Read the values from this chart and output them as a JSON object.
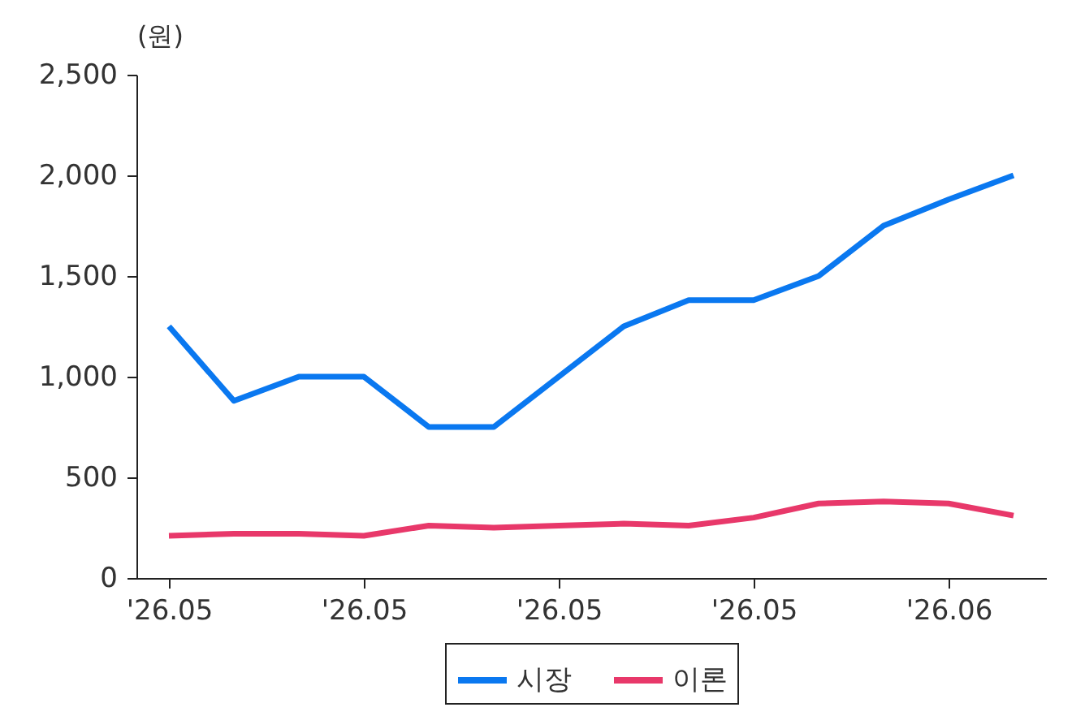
{
  "chart_data": {
    "type": "line",
    "ylabel": "(원)",
    "categories": [
      "'26.05",
      null,
      null,
      "'26.05",
      null,
      null,
      "'26.05",
      null,
      null,
      "'26.05",
      null,
      null,
      "'26.06",
      null
    ],
    "series": [
      {
        "name": "시장",
        "color": "#0a78f0",
        "values": [
          1250,
          880,
          1000,
          1000,
          750,
          750,
          1000,
          1250,
          1380,
          1380,
          1500,
          1750,
          1880,
          2000
        ]
      },
      {
        "name": "이론",
        "color": "#e8386a",
        "values": [
          210,
          220,
          220,
          210,
          260,
          250,
          260,
          270,
          260,
          300,
          370,
          380,
          370,
          310
        ]
      }
    ],
    "ylim": [
      0,
      2500
    ],
    "yticks": [
      0,
      500,
      {
        "value": 1000,
        "label": "1,000"
      },
      {
        "value": 1500,
        "label": "1,500"
      },
      {
        "value": 2000,
        "label": "2,000"
      },
      {
        "value": 2500,
        "label": "2,500"
      }
    ],
    "grid": false,
    "legend": "bottom",
    "line_style": "solid",
    "marker": "none"
  }
}
